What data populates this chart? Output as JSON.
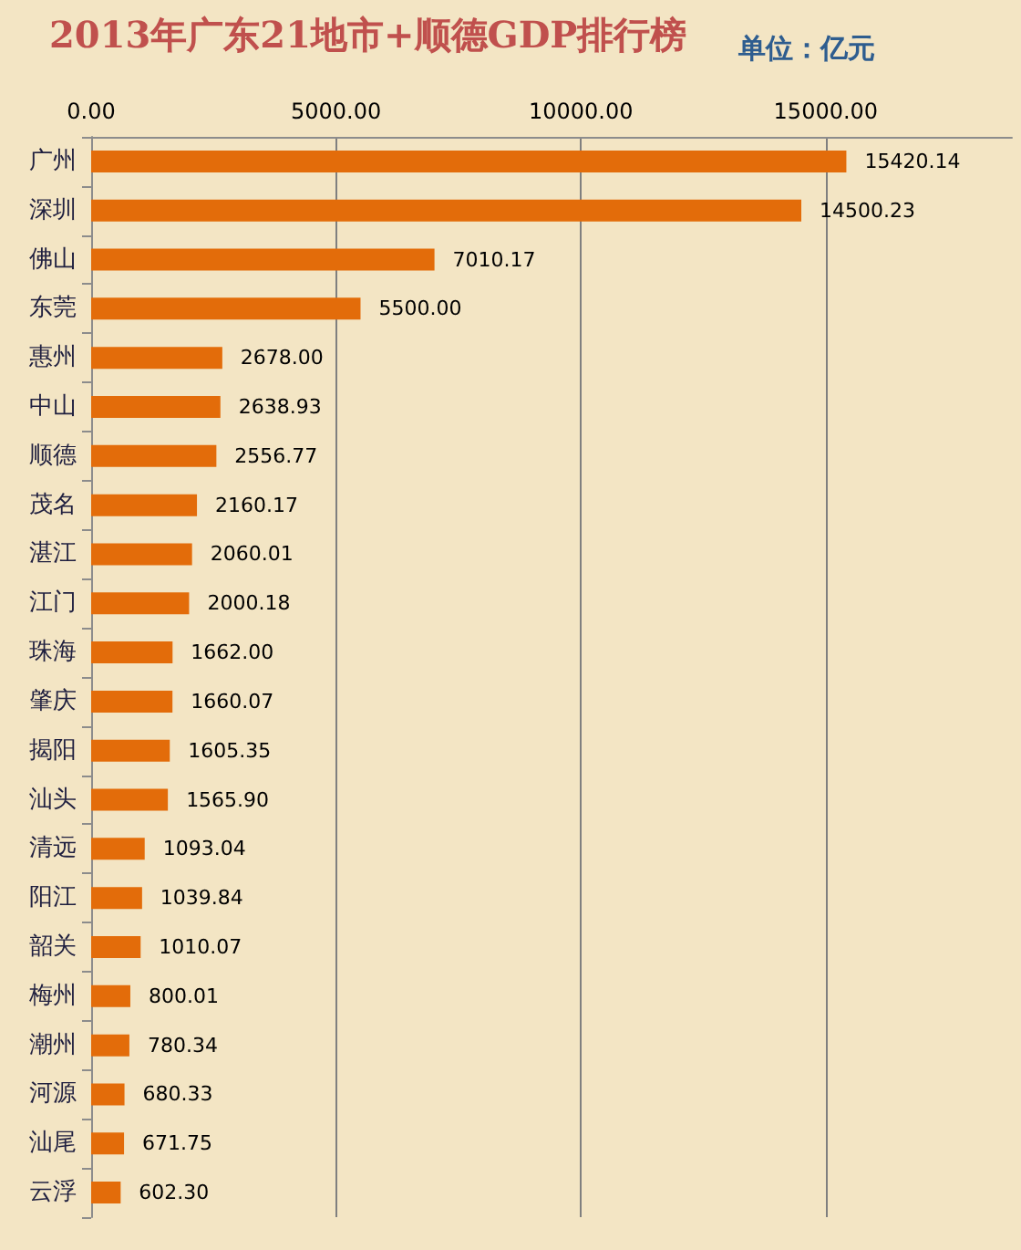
{
  "chart_data": {
    "type": "bar",
    "orientation": "horizontal",
    "title": "2013年广东21地市+顺德GDP排行榜",
    "subtitle": "单位：亿元",
    "categories": [
      "广州",
      "深圳",
      "佛山",
      "东莞",
      "惠州",
      "中山",
      "顺德",
      "茂名",
      "湛江",
      "江门",
      "珠海",
      "肇庆",
      "揭阳",
      "汕头",
      "清远",
      "阳江",
      "韶关",
      "梅州",
      "潮州",
      "河源",
      "汕尾",
      "云浮"
    ],
    "values": [
      15420.14,
      14500.23,
      7010.17,
      5500.0,
      2678.0,
      2638.93,
      2556.77,
      2160.17,
      2060.01,
      2000.18,
      1662.0,
      1660.07,
      1605.35,
      1565.9,
      1093.04,
      1039.84,
      1010.07,
      800.01,
      780.34,
      680.33,
      671.75,
      602.3
    ],
    "value_labels": [
      "15420.14",
      "14500.23",
      "7010.17",
      "5500.00",
      "2678.00",
      "2638.93",
      "2556.77",
      "2160.17",
      "2060.01",
      "2000.18",
      "1662.00",
      "1660.07",
      "1605.35",
      "1565.90",
      "1093.04",
      "1039.84",
      "1010.07",
      "800.01",
      "780.34",
      "680.33",
      "671.75",
      "602.30"
    ],
    "color": "#e36c0a",
    "xlim": [
      0,
      18800
    ],
    "xticks": [
      {
        "value": 0,
        "label": "0.00"
      },
      {
        "value": 5000,
        "label": "5000.00"
      },
      {
        "value": 10000,
        "label": "10000.00"
      },
      {
        "value": 15000,
        "label": "15000.00"
      }
    ],
    "grid": "x"
  }
}
